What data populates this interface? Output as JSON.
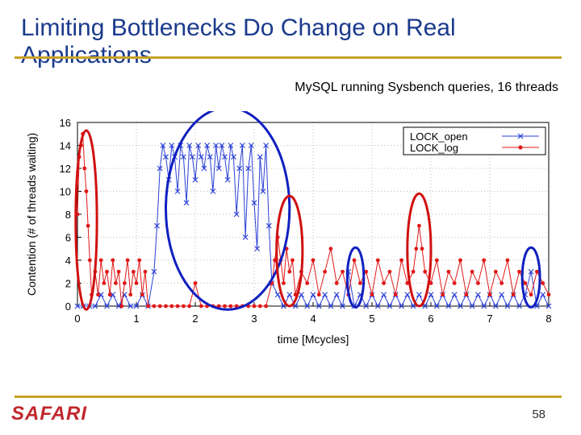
{
  "slide": {
    "title": "Limiting Bottlenecks Do Change on Real Applications",
    "subtitle": "MySQL running Sysbench queries, 16 threads",
    "logo_text": "SAFARI",
    "page_number": "58"
  },
  "colors": {
    "title": "#1a3a8c",
    "rule": "#c9a227",
    "logo": "#c0282d",
    "lock_open": "#2a3fd6",
    "lock_log": "#e01818",
    "highlight_red": "#d01010",
    "highlight_blue": "#1020c0"
  },
  "chart_data": {
    "type": "line",
    "xlabel": "time [Mcycles]",
    "ylabel": "Contention (# of threads waiting)",
    "xlim": [
      0,
      8
    ],
    "ylim": [
      0,
      16
    ],
    "xticks": [
      0,
      1,
      2,
      3,
      4,
      5,
      6,
      7,
      8
    ],
    "yticks": [
      0,
      2,
      4,
      6,
      8,
      10,
      12,
      14,
      16
    ],
    "grid": true,
    "legend_position": "top-right",
    "series": [
      {
        "name": "LOCK_open",
        "marker": "x",
        "color": "#2a3fd6",
        "points": [
          [
            0.0,
            0
          ],
          [
            0.1,
            0
          ],
          [
            0.2,
            0
          ],
          [
            0.3,
            0
          ],
          [
            0.4,
            1
          ],
          [
            0.5,
            0
          ],
          [
            0.6,
            1
          ],
          [
            0.7,
            0
          ],
          [
            0.8,
            1
          ],
          [
            0.9,
            0
          ],
          [
            1.0,
            0
          ],
          [
            1.1,
            1
          ],
          [
            1.2,
            0
          ],
          [
            1.3,
            3
          ],
          [
            1.35,
            7
          ],
          [
            1.4,
            12
          ],
          [
            1.45,
            14
          ],
          [
            1.5,
            13
          ],
          [
            1.55,
            11
          ],
          [
            1.6,
            14
          ],
          [
            1.65,
            13
          ],
          [
            1.7,
            10
          ],
          [
            1.75,
            14
          ],
          [
            1.8,
            13
          ],
          [
            1.85,
            9
          ],
          [
            1.9,
            14
          ],
          [
            1.95,
            13
          ],
          [
            2.0,
            11
          ],
          [
            2.05,
            14
          ],
          [
            2.1,
            13
          ],
          [
            2.15,
            12
          ],
          [
            2.2,
            14
          ],
          [
            2.25,
            13
          ],
          [
            2.3,
            10
          ],
          [
            2.35,
            14
          ],
          [
            2.4,
            12
          ],
          [
            2.45,
            14
          ],
          [
            2.5,
            13
          ],
          [
            2.55,
            11
          ],
          [
            2.6,
            14
          ],
          [
            2.65,
            13
          ],
          [
            2.7,
            8
          ],
          [
            2.75,
            12
          ],
          [
            2.8,
            14
          ],
          [
            2.85,
            6
          ],
          [
            2.9,
            12
          ],
          [
            2.95,
            14
          ],
          [
            3.0,
            9
          ],
          [
            3.05,
            5
          ],
          [
            3.1,
            13
          ],
          [
            3.15,
            10
          ],
          [
            3.2,
            14
          ],
          [
            3.25,
            7
          ],
          [
            3.3,
            2
          ],
          [
            3.4,
            1
          ],
          [
            3.5,
            0
          ],
          [
            3.6,
            1
          ],
          [
            3.7,
            0
          ],
          [
            3.8,
            1
          ],
          [
            3.9,
            0
          ],
          [
            4.0,
            1
          ],
          [
            4.1,
            0
          ],
          [
            4.2,
            1
          ],
          [
            4.3,
            0
          ],
          [
            4.4,
            1
          ],
          [
            4.5,
            0
          ],
          [
            4.6,
            3
          ],
          [
            4.7,
            0
          ],
          [
            4.8,
            1
          ],
          [
            4.9,
            0
          ],
          [
            5.0,
            1
          ],
          [
            5.1,
            0
          ],
          [
            5.2,
            1
          ],
          [
            5.3,
            0
          ],
          [
            5.4,
            1
          ],
          [
            5.5,
            0
          ],
          [
            5.6,
            1
          ],
          [
            5.7,
            0
          ],
          [
            5.8,
            1
          ],
          [
            5.9,
            0
          ],
          [
            6.0,
            1
          ],
          [
            6.1,
            0
          ],
          [
            6.2,
            1
          ],
          [
            6.3,
            0
          ],
          [
            6.4,
            1
          ],
          [
            6.5,
            0
          ],
          [
            6.6,
            1
          ],
          [
            6.7,
            0
          ],
          [
            6.8,
            1
          ],
          [
            6.9,
            0
          ],
          [
            7.0,
            1
          ],
          [
            7.1,
            0
          ],
          [
            7.2,
            1
          ],
          [
            7.3,
            0
          ],
          [
            7.4,
            1
          ],
          [
            7.5,
            0
          ],
          [
            7.6,
            1
          ],
          [
            7.7,
            3
          ],
          [
            7.8,
            0
          ],
          [
            7.9,
            1
          ],
          [
            8.0,
            0
          ]
        ]
      },
      {
        "name": "LOCK_log",
        "marker": "*",
        "color": "#e01818",
        "points": [
          [
            0.0,
            8
          ],
          [
            0.03,
            13
          ],
          [
            0.06,
            14
          ],
          [
            0.09,
            15
          ],
          [
            0.12,
            12
          ],
          [
            0.15,
            10
          ],
          [
            0.18,
            7
          ],
          [
            0.21,
            4
          ],
          [
            0.24,
            1
          ],
          [
            0.3,
            3
          ],
          [
            0.35,
            1
          ],
          [
            0.4,
            4
          ],
          [
            0.45,
            2
          ],
          [
            0.5,
            3
          ],
          [
            0.55,
            1
          ],
          [
            0.6,
            4
          ],
          [
            0.65,
            2
          ],
          [
            0.7,
            3
          ],
          [
            0.75,
            0
          ],
          [
            0.8,
            2
          ],
          [
            0.85,
            4
          ],
          [
            0.9,
            1
          ],
          [
            0.95,
            3
          ],
          [
            1.0,
            2
          ],
          [
            1.05,
            4
          ],
          [
            1.1,
            1
          ],
          [
            1.15,
            3
          ],
          [
            1.2,
            0
          ],
          [
            1.3,
            0
          ],
          [
            1.4,
            0
          ],
          [
            1.5,
            0
          ],
          [
            1.6,
            0
          ],
          [
            1.7,
            0
          ],
          [
            1.8,
            0
          ],
          [
            1.9,
            0
          ],
          [
            2.0,
            2
          ],
          [
            2.1,
            0
          ],
          [
            2.2,
            0
          ],
          [
            2.3,
            0
          ],
          [
            2.4,
            0
          ],
          [
            2.5,
            0
          ],
          [
            2.6,
            0
          ],
          [
            2.7,
            0
          ],
          [
            2.8,
            0
          ],
          [
            2.9,
            0
          ],
          [
            3.0,
            0
          ],
          [
            3.1,
            0
          ],
          [
            3.2,
            0
          ],
          [
            3.3,
            2
          ],
          [
            3.35,
            4
          ],
          [
            3.4,
            6
          ],
          [
            3.45,
            4
          ],
          [
            3.5,
            2
          ],
          [
            3.55,
            5
          ],
          [
            3.6,
            3
          ],
          [
            3.65,
            4
          ],
          [
            3.7,
            1
          ],
          [
            3.8,
            3
          ],
          [
            3.9,
            2
          ],
          [
            4.0,
            4
          ],
          [
            4.1,
            1
          ],
          [
            4.2,
            3
          ],
          [
            4.3,
            5
          ],
          [
            4.4,
            2
          ],
          [
            4.5,
            3
          ],
          [
            4.6,
            1
          ],
          [
            4.7,
            4
          ],
          [
            4.8,
            2
          ],
          [
            4.9,
            3
          ],
          [
            5.0,
            1
          ],
          [
            5.1,
            4
          ],
          [
            5.2,
            2
          ],
          [
            5.3,
            3
          ],
          [
            5.4,
            1
          ],
          [
            5.5,
            4
          ],
          [
            5.6,
            2
          ],
          [
            5.7,
            3
          ],
          [
            5.75,
            5
          ],
          [
            5.8,
            7
          ],
          [
            5.85,
            5
          ],
          [
            5.9,
            3
          ],
          [
            6.0,
            2
          ],
          [
            6.1,
            4
          ],
          [
            6.2,
            1
          ],
          [
            6.3,
            3
          ],
          [
            6.4,
            2
          ],
          [
            6.5,
            4
          ],
          [
            6.6,
            1
          ],
          [
            6.7,
            3
          ],
          [
            6.8,
            2
          ],
          [
            6.9,
            4
          ],
          [
            7.0,
            1
          ],
          [
            7.1,
            3
          ],
          [
            7.2,
            2
          ],
          [
            7.3,
            4
          ],
          [
            7.4,
            1
          ],
          [
            7.5,
            3
          ],
          [
            7.6,
            2
          ],
          [
            7.7,
            1
          ],
          [
            7.8,
            3
          ],
          [
            7.9,
            2
          ],
          [
            8.0,
            1
          ]
        ]
      }
    ],
    "highlights": [
      {
        "shape": "ellipse",
        "color": "red",
        "cx": 0.15,
        "cy": 7.5,
        "rx": 0.18,
        "ry": 7.8
      },
      {
        "shape": "ellipse",
        "color": "blue",
        "cx": 2.55,
        "cy": 8.5,
        "rx": 1.05,
        "ry": 8.8
      },
      {
        "shape": "ellipse",
        "color": "red",
        "cx": 3.6,
        "cy": 4.8,
        "rx": 0.22,
        "ry": 4.8
      },
      {
        "shape": "ellipse",
        "color": "blue",
        "cx": 4.72,
        "cy": 2.5,
        "rx": 0.14,
        "ry": 2.6
      },
      {
        "shape": "ellipse",
        "color": "red",
        "cx": 5.8,
        "cy": 4.9,
        "rx": 0.2,
        "ry": 4.9
      },
      {
        "shape": "ellipse",
        "color": "blue",
        "cx": 7.7,
        "cy": 2.5,
        "rx": 0.15,
        "ry": 2.6
      }
    ]
  }
}
